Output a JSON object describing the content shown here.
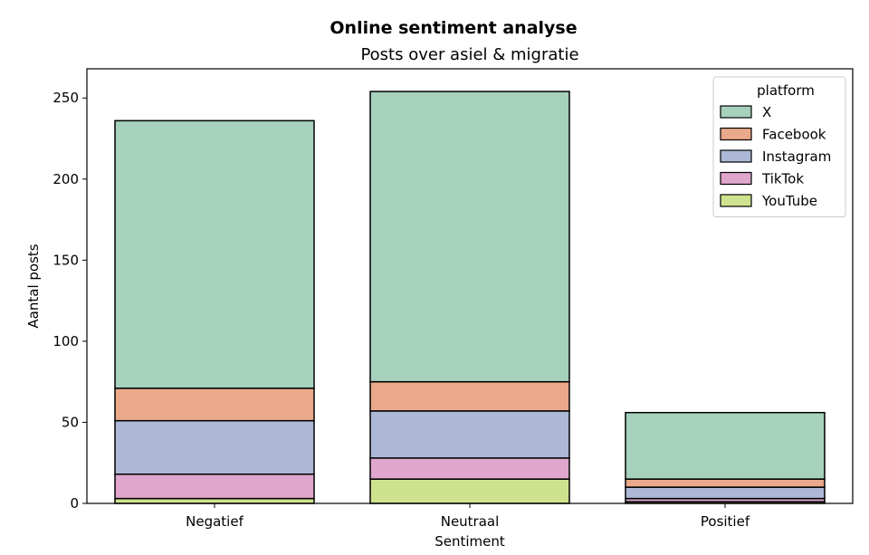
{
  "chart_data": {
    "type": "bar",
    "stacked": true,
    "title": "Online sentiment analyse",
    "subtitle": "Posts over asiel & migratie",
    "xlabel": "Sentiment",
    "ylabel": "Aantal posts",
    "categories": [
      "Negatief",
      "Neutraal",
      "Positief"
    ],
    "ylim": [
      0,
      268
    ],
    "yticks": [
      0,
      50,
      100,
      150,
      200,
      250
    ],
    "grid": false,
    "legend": {
      "title": "platform",
      "position": "top-right"
    },
    "series": [
      {
        "name": "YouTube",
        "color": "#cfe38e",
        "values": [
          3,
          15,
          1
        ]
      },
      {
        "name": "TikTok",
        "color": "#e0a6cd",
        "values": [
          15,
          13,
          2
        ]
      },
      {
        "name": "Instagram",
        "color": "#adb8d7",
        "values": [
          33,
          29,
          7
        ]
      },
      {
        "name": "Facebook",
        "color": "#e9a98a",
        "values": [
          20,
          18,
          5
        ]
      },
      {
        "name": "X",
        "color": "#a6d1bc",
        "values": [
          165,
          179,
          41
        ]
      }
    ],
    "legend_order": [
      "X",
      "Facebook",
      "Instagram",
      "TikTok",
      "YouTube"
    ]
  }
}
